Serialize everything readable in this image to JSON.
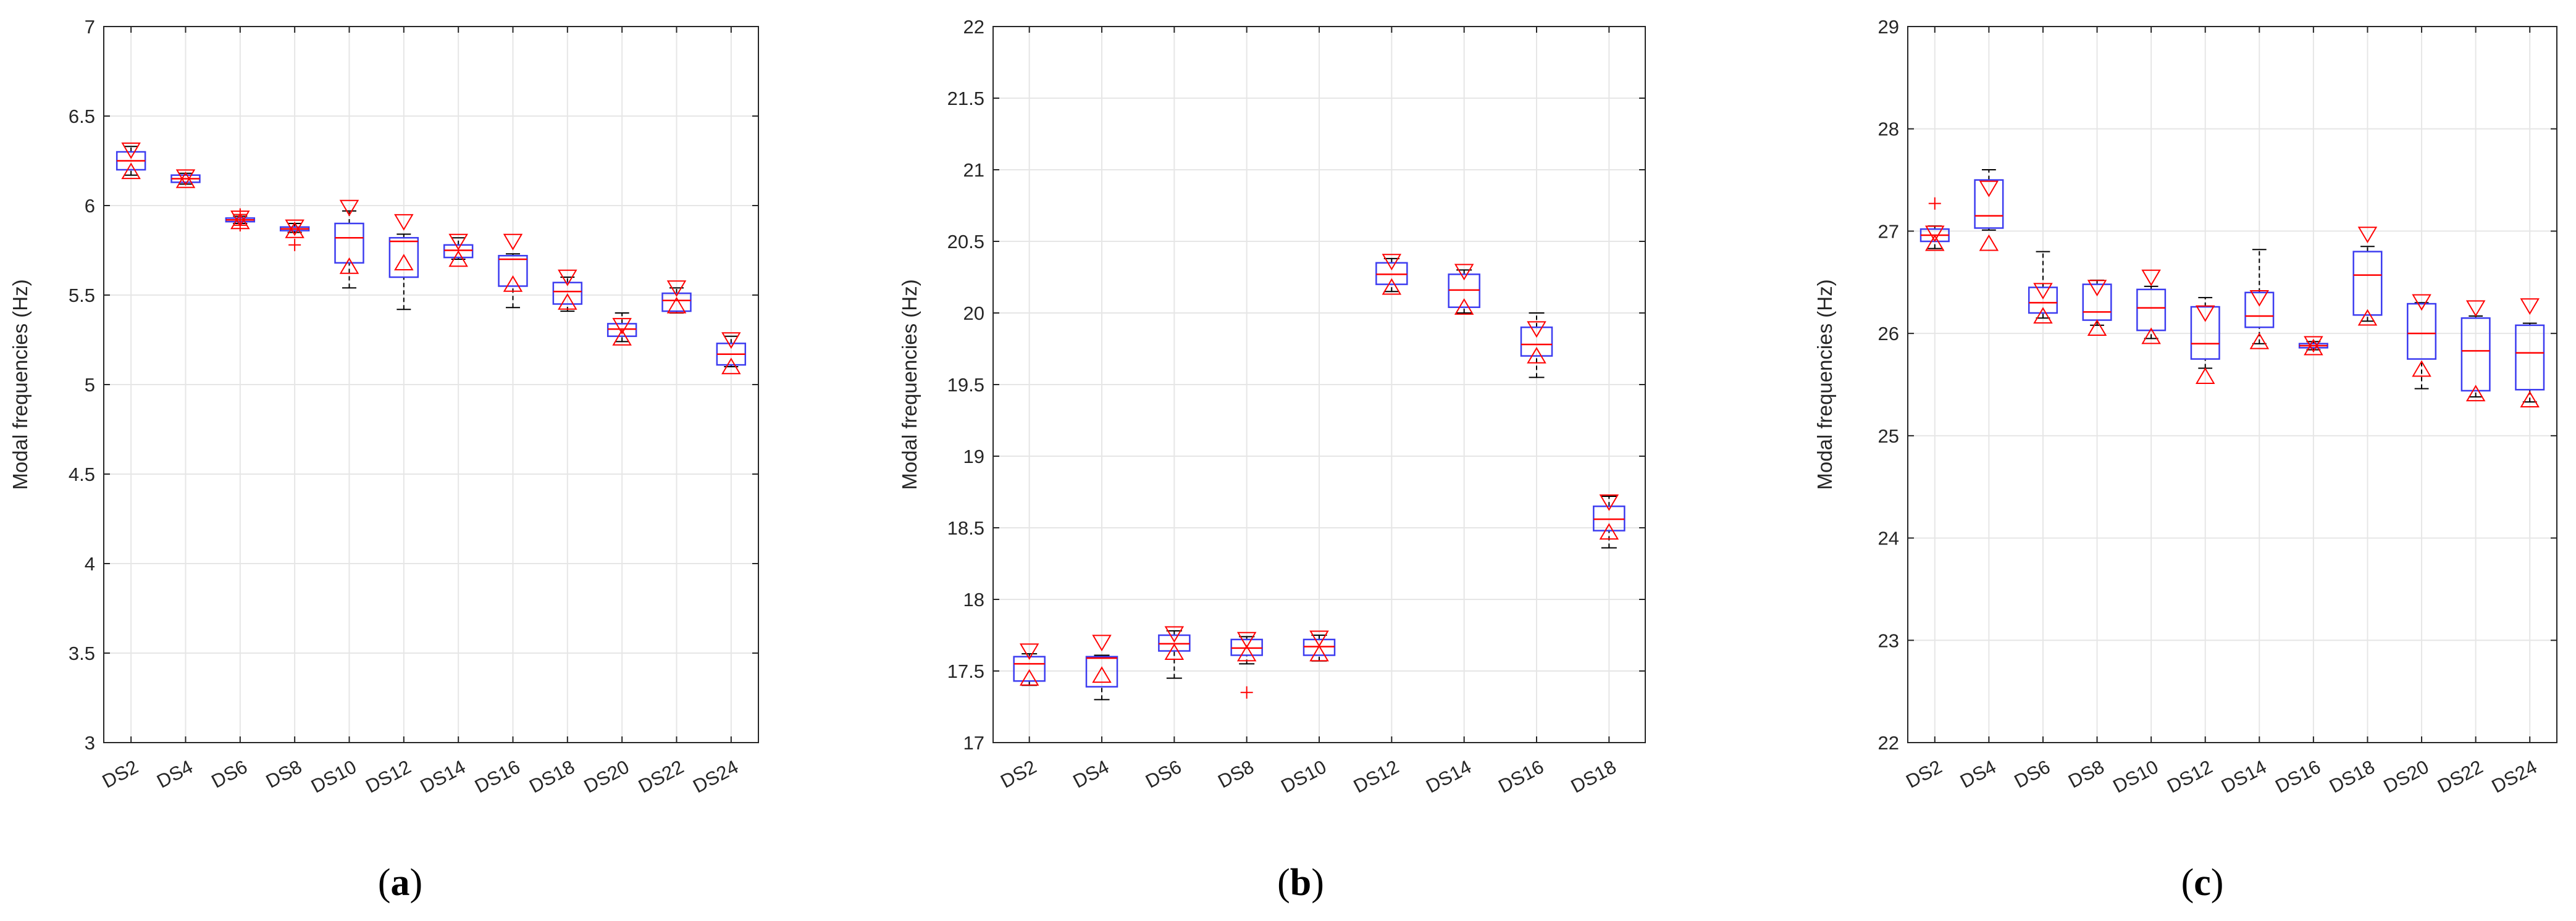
{
  "panel_labels": [
    "a",
    "b",
    "c"
  ],
  "colors": {
    "box": "#3c3cf0",
    "median": "#ff0000",
    "whisker": "#000000",
    "marker": "#ff0000",
    "grid": "#e6e6e6",
    "axis": "#262626"
  },
  "chart_data": [
    {
      "type": "box",
      "panel": "a",
      "ylabel": "Modal frequencies (Hz)",
      "ylim": [
        3,
        7
      ],
      "yticks": [
        3,
        3.5,
        4,
        4.5,
        5,
        5.5,
        6,
        6.5,
        7
      ],
      "ytick_labels": [
        "3",
        "3.5",
        "4",
        "4.5",
        "5",
        "5.5",
        "6",
        "6.5",
        "7"
      ],
      "grid": true,
      "categories": [
        "DS2",
        "DS4",
        "DS6",
        "DS8",
        "DS10",
        "DS12",
        "DS14",
        "DS16",
        "DS18",
        "DS20",
        "DS22",
        "DS24"
      ],
      "boxes": [
        {
          "q1": 6.2,
          "median": 6.25,
          "q3": 6.3,
          "lo": 6.17,
          "hi": 6.33,
          "up": 6.31,
          "down": 6.19,
          "outliers": []
        },
        {
          "q1": 6.13,
          "median": 6.15,
          "q3": 6.17,
          "lo": 6.12,
          "hi": 6.18,
          "up": 6.16,
          "down": 6.14,
          "outliers": []
        },
        {
          "q1": 5.91,
          "median": 5.92,
          "q3": 5.93,
          "lo": 5.9,
          "hi": 5.94,
          "up": 5.93,
          "down": 5.91,
          "outliers": [
            5.95,
            5.89
          ]
        },
        {
          "q1": 5.86,
          "median": 5.87,
          "q3": 5.88,
          "lo": 5.85,
          "hi": 5.9,
          "up": 5.88,
          "down": 5.86,
          "outliers": [
            5.78
          ]
        },
        {
          "q1": 5.68,
          "median": 5.82,
          "q3": 5.9,
          "lo": 5.54,
          "hi": 5.97,
          "up": 5.99,
          "down": 5.66,
          "outliers": []
        },
        {
          "q1": 5.6,
          "median": 5.8,
          "q3": 5.82,
          "lo": 5.42,
          "hi": 5.84,
          "up": 5.91,
          "down": 5.68,
          "outliers": []
        },
        {
          "q1": 5.71,
          "median": 5.75,
          "q3": 5.78,
          "lo": 5.7,
          "hi": 5.82,
          "up": 5.8,
          "down": 5.7,
          "outliers": []
        },
        {
          "q1": 5.55,
          "median": 5.7,
          "q3": 5.72,
          "lo": 5.43,
          "hi": 5.73,
          "up": 5.8,
          "down": 5.56,
          "outliers": []
        },
        {
          "q1": 5.45,
          "median": 5.52,
          "q3": 5.57,
          "lo": 5.41,
          "hi": 5.6,
          "up": 5.6,
          "down": 5.46,
          "outliers": []
        },
        {
          "q1": 5.27,
          "median": 5.31,
          "q3": 5.34,
          "lo": 5.24,
          "hi": 5.4,
          "up": 5.33,
          "down": 5.26,
          "outliers": []
        },
        {
          "q1": 5.41,
          "median": 5.47,
          "q3": 5.51,
          "lo": 5.4,
          "hi": 5.54,
          "up": 5.54,
          "down": 5.44,
          "outliers": []
        },
        {
          "q1": 5.11,
          "median": 5.17,
          "q3": 5.23,
          "lo": 5.1,
          "hi": 5.27,
          "up": 5.25,
          "down": 5.1,
          "outliers": []
        }
      ]
    },
    {
      "type": "box",
      "panel": "b",
      "ylabel": "Modal frequencies (Hz)",
      "ylim": [
        17,
        22
      ],
      "yticks": [
        17,
        17.5,
        18,
        18.5,
        19,
        19.5,
        20,
        20.5,
        21,
        21.5,
        22
      ],
      "ytick_labels": [
        "17",
        "17.5",
        "18",
        "18.5",
        "19",
        "19.5",
        "20",
        "20.5",
        "21",
        "21.5",
        "22"
      ],
      "grid": true,
      "categories": [
        "DS2",
        "DS4",
        "DS6",
        "DS8",
        "DS10",
        "DS12",
        "DS14",
        "DS16",
        "DS18"
      ],
      "boxes": [
        {
          "q1": 17.43,
          "median": 17.55,
          "q3": 17.6,
          "lo": 17.4,
          "hi": 17.62,
          "up": 17.64,
          "down": 17.45,
          "outliers": []
        },
        {
          "q1": 17.39,
          "median": 17.59,
          "q3": 17.6,
          "lo": 17.3,
          "hi": 17.61,
          "up": 17.7,
          "down": 17.47,
          "outliers": []
        },
        {
          "q1": 17.64,
          "median": 17.69,
          "q3": 17.75,
          "lo": 17.45,
          "hi": 17.78,
          "up": 17.76,
          "down": 17.63,
          "outliers": []
        },
        {
          "q1": 17.61,
          "median": 17.66,
          "q3": 17.72,
          "lo": 17.55,
          "hi": 17.74,
          "up": 17.72,
          "down": 17.62,
          "outliers": [
            17.35
          ]
        },
        {
          "q1": 17.61,
          "median": 17.67,
          "q3": 17.72,
          "lo": 17.57,
          "hi": 17.75,
          "up": 17.73,
          "down": 17.62,
          "outliers": []
        },
        {
          "q1": 20.2,
          "median": 20.27,
          "q3": 20.35,
          "lo": 20.15,
          "hi": 20.38,
          "up": 20.36,
          "down": 20.18,
          "outliers": []
        },
        {
          "q1": 20.04,
          "median": 20.16,
          "q3": 20.27,
          "lo": 20.0,
          "hi": 20.3,
          "up": 20.29,
          "down": 20.04,
          "outliers": []
        },
        {
          "q1": 19.7,
          "median": 19.78,
          "q3": 19.9,
          "lo": 19.55,
          "hi": 20.0,
          "up": 19.89,
          "down": 19.7,
          "outliers": []
        },
        {
          "q1": 18.48,
          "median": 18.56,
          "q3": 18.65,
          "lo": 18.36,
          "hi": 18.72,
          "up": 18.68,
          "down": 18.47,
          "outliers": []
        }
      ]
    },
    {
      "type": "box",
      "panel": "c",
      "ylabel": "Modal frequencies (Hz)",
      "ylim": [
        22,
        29
      ],
      "yticks": [
        22,
        23,
        24,
        25,
        26,
        27,
        28,
        29
      ],
      "ytick_labels": [
        "22",
        "23",
        "24",
        "25",
        "26",
        "27",
        "28",
        "29"
      ],
      "grid": true,
      "categories": [
        "DS2",
        "DS4",
        "DS6",
        "DS8",
        "DS10",
        "DS12",
        "DS14",
        "DS16",
        "DS18",
        "DS20",
        "DS22",
        "DS24"
      ],
      "boxes": [
        {
          "q1": 26.9,
          "median": 26.96,
          "q3": 27.02,
          "lo": 26.83,
          "hi": 27.05,
          "up": 26.98,
          "down": 26.88,
          "outliers": [
            27.27
          ]
        },
        {
          "q1": 27.03,
          "median": 27.15,
          "q3": 27.5,
          "lo": 27.01,
          "hi": 27.6,
          "up": 27.42,
          "down": 26.88,
          "outliers": []
        },
        {
          "q1": 26.2,
          "median": 26.3,
          "q3": 26.45,
          "lo": 26.15,
          "hi": 26.8,
          "up": 26.42,
          "down": 26.17,
          "outliers": []
        },
        {
          "q1": 26.13,
          "median": 26.21,
          "q3": 26.48,
          "lo": 26.08,
          "hi": 26.52,
          "up": 26.45,
          "down": 26.05,
          "outliers": []
        },
        {
          "q1": 26.03,
          "median": 26.25,
          "q3": 26.43,
          "lo": 25.95,
          "hi": 26.46,
          "up": 26.55,
          "down": 25.97,
          "outliers": []
        },
        {
          "q1": 25.75,
          "median": 25.9,
          "q3": 26.26,
          "lo": 25.66,
          "hi": 26.35,
          "up": 26.2,
          "down": 25.58,
          "outliers": []
        },
        {
          "q1": 26.06,
          "median": 26.17,
          "q3": 26.4,
          "lo": 25.9,
          "hi": 26.82,
          "up": 26.35,
          "down": 25.92,
          "outliers": []
        },
        {
          "q1": 25.86,
          "median": 25.88,
          "q3": 25.9,
          "lo": 25.84,
          "hi": 25.92,
          "up": 25.9,
          "down": 25.86,
          "outliers": []
        },
        {
          "q1": 26.18,
          "median": 26.57,
          "q3": 26.8,
          "lo": 26.12,
          "hi": 26.85,
          "up": 26.97,
          "down": 26.15,
          "outliers": []
        },
        {
          "q1": 25.75,
          "median": 26.0,
          "q3": 26.29,
          "lo": 25.46,
          "hi": 26.3,
          "up": 26.31,
          "down": 25.65,
          "outliers": []
        },
        {
          "q1": 25.44,
          "median": 25.83,
          "q3": 26.15,
          "lo": 25.38,
          "hi": 26.17,
          "up": 26.25,
          "down": 25.41,
          "outliers": []
        },
        {
          "q1": 25.45,
          "median": 25.81,
          "q3": 26.08,
          "lo": 25.33,
          "hi": 26.1,
          "up": 26.27,
          "down": 25.35,
          "outliers": []
        }
      ]
    }
  ]
}
